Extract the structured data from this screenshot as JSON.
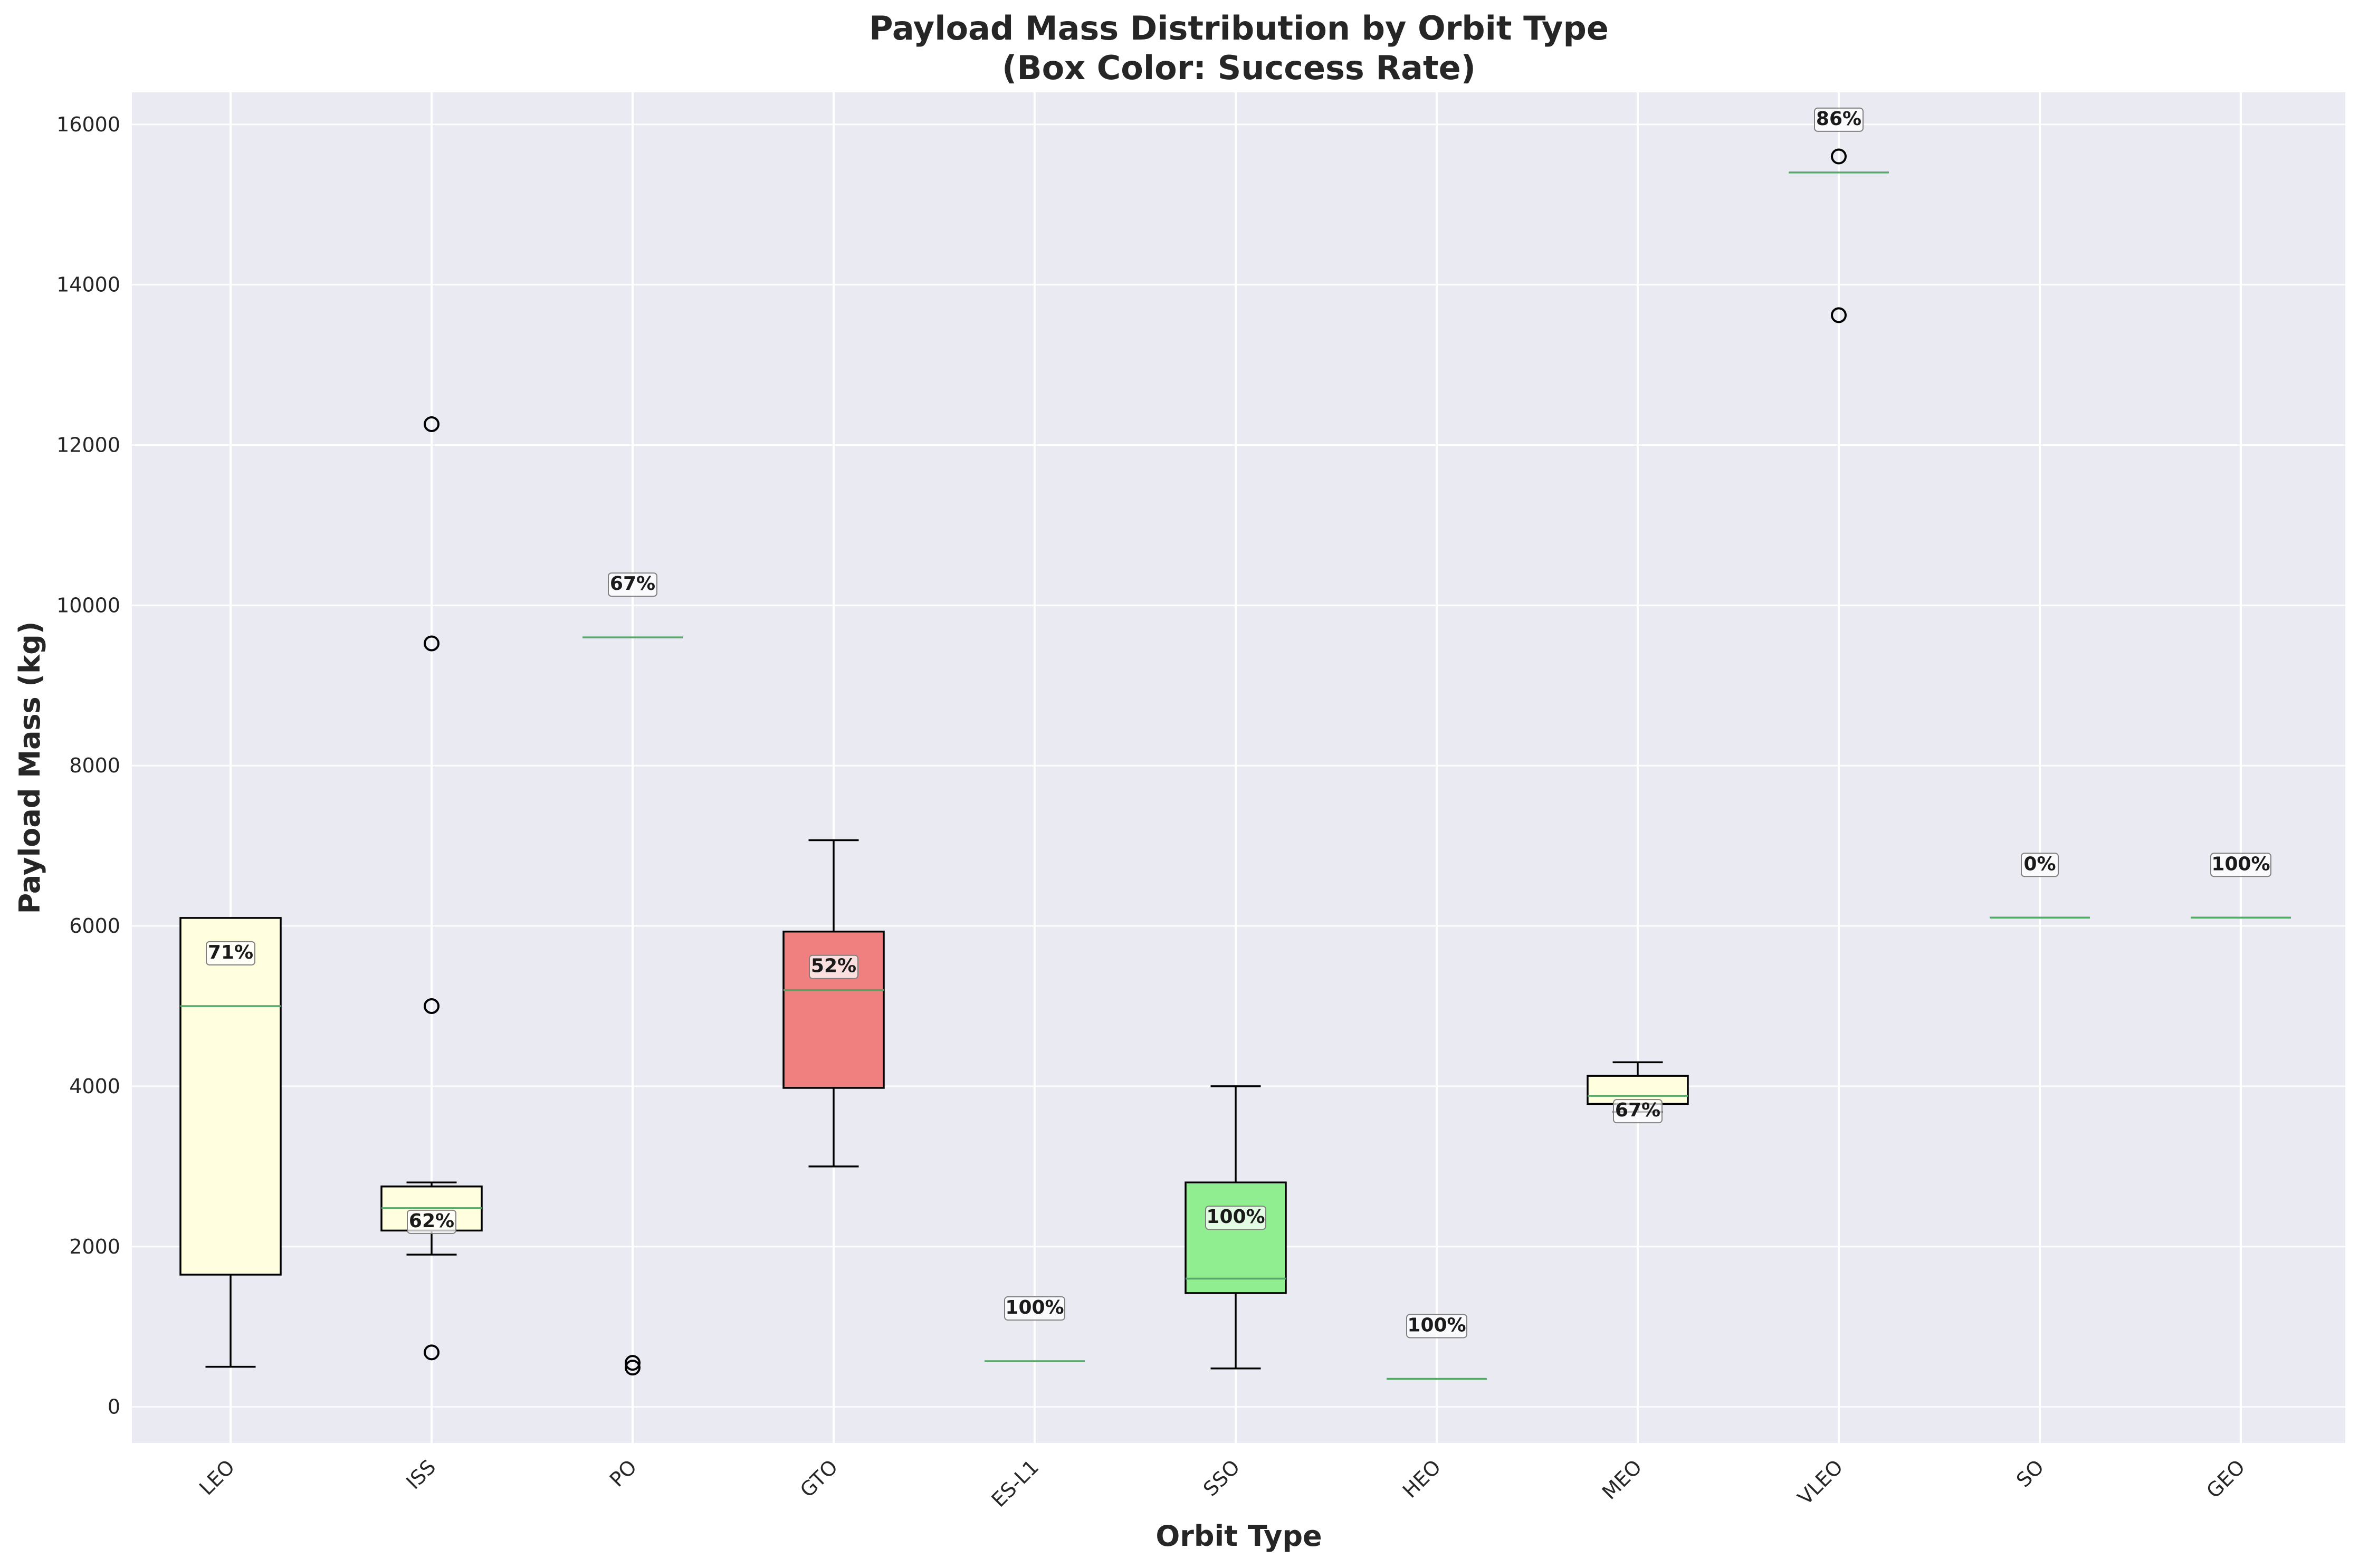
{
  "chart_data": {
    "type": "box",
    "title_line1": "Payload Mass Distribution by Orbit Type",
    "title_line2": "(Box Color: Success Rate)",
    "xlabel": "Orbit Type",
    "ylabel": "Payload Mass (kg)",
    "ylim": [
      -450,
      16400
    ],
    "yticks": [
      0,
      2000,
      4000,
      6000,
      8000,
      10000,
      12000,
      14000,
      16000
    ],
    "yticklabels": [
      "0",
      "2000",
      "4000",
      "6000",
      "8000",
      "10000",
      "12000",
      "14000",
      "16000"
    ],
    "grid": true,
    "background_color": "#eaeaf2",
    "grid_color": "#ffffff",
    "median_color": "#55a868",
    "colors": {
      "high": "#90ee90",
      "mid": "#ffffe0",
      "low": "#f08080"
    },
    "categories": [
      "LEO",
      "ISS",
      "PO",
      "GTO",
      "ES-L1",
      "SSO",
      "HEO",
      "MEO",
      "VLEO",
      "SO",
      "GEO"
    ],
    "boxes": [
      {
        "category": "LEO",
        "whisker_low": 500,
        "q1": 1650,
        "median": 5000,
        "q3": 6100,
        "whisker_high": 6100,
        "outliers": [],
        "success_rate": "71%",
        "color": "mid"
      },
      {
        "category": "ISS",
        "whisker_low": 1900,
        "q1": 2200,
        "median": 2480,
        "q3": 2750,
        "whisker_high": 2800,
        "outliers": [
          680,
          5000,
          9525,
          12260
        ],
        "success_rate": "62%",
        "color": "mid"
      },
      {
        "category": "PO",
        "whisker_low": 9600,
        "q1": 9600,
        "median": 9600,
        "q3": 9600,
        "whisker_high": 9600,
        "outliers": [
          490,
          550
        ],
        "success_rate": "67%",
        "color": "mid"
      },
      {
        "category": "GTO",
        "whisker_low": 3000,
        "q1": 3980,
        "median": 5200,
        "q3": 5930,
        "whisker_high": 7070,
        "outliers": [],
        "success_rate": "52%",
        "color": "low"
      },
      {
        "category": "ES-L1",
        "whisker_low": 570,
        "q1": 570,
        "median": 570,
        "q3": 570,
        "whisker_high": 570,
        "outliers": [],
        "success_rate": "100%",
        "color": "high"
      },
      {
        "category": "SSO",
        "whisker_low": 480,
        "q1": 1420,
        "median": 1600,
        "q3": 2800,
        "whisker_high": 4000,
        "outliers": [],
        "success_rate": "100%",
        "color": "high"
      },
      {
        "category": "HEO",
        "whisker_low": 350,
        "q1": 350,
        "median": 350,
        "q3": 350,
        "whisker_high": 350,
        "outliers": [],
        "success_rate": "100%",
        "color": "high"
      },
      {
        "category": "MEO",
        "whisker_low": 3680,
        "q1": 3780,
        "median": 3880,
        "q3": 4130,
        "whisker_high": 4300,
        "outliers": [],
        "success_rate": "67%",
        "color": "mid"
      },
      {
        "category": "VLEO",
        "whisker_low": 15400,
        "q1": 15400,
        "median": 15400,
        "q3": 15400,
        "whisker_high": 15400,
        "outliers": [
          13620,
          15600
        ],
        "success_rate": "86%",
        "color": "high"
      },
      {
        "category": "SO",
        "whisker_low": 6104,
        "q1": 6104,
        "median": 6104,
        "q3": 6104,
        "whisker_high": 6104,
        "outliers": [],
        "success_rate": "0%",
        "color": "low"
      },
      {
        "category": "GEO",
        "whisker_low": 6104,
        "q1": 6104,
        "median": 6104,
        "q3": 6104,
        "whisker_high": 6104,
        "outliers": [],
        "success_rate": "100%",
        "color": "high"
      }
    ]
  }
}
